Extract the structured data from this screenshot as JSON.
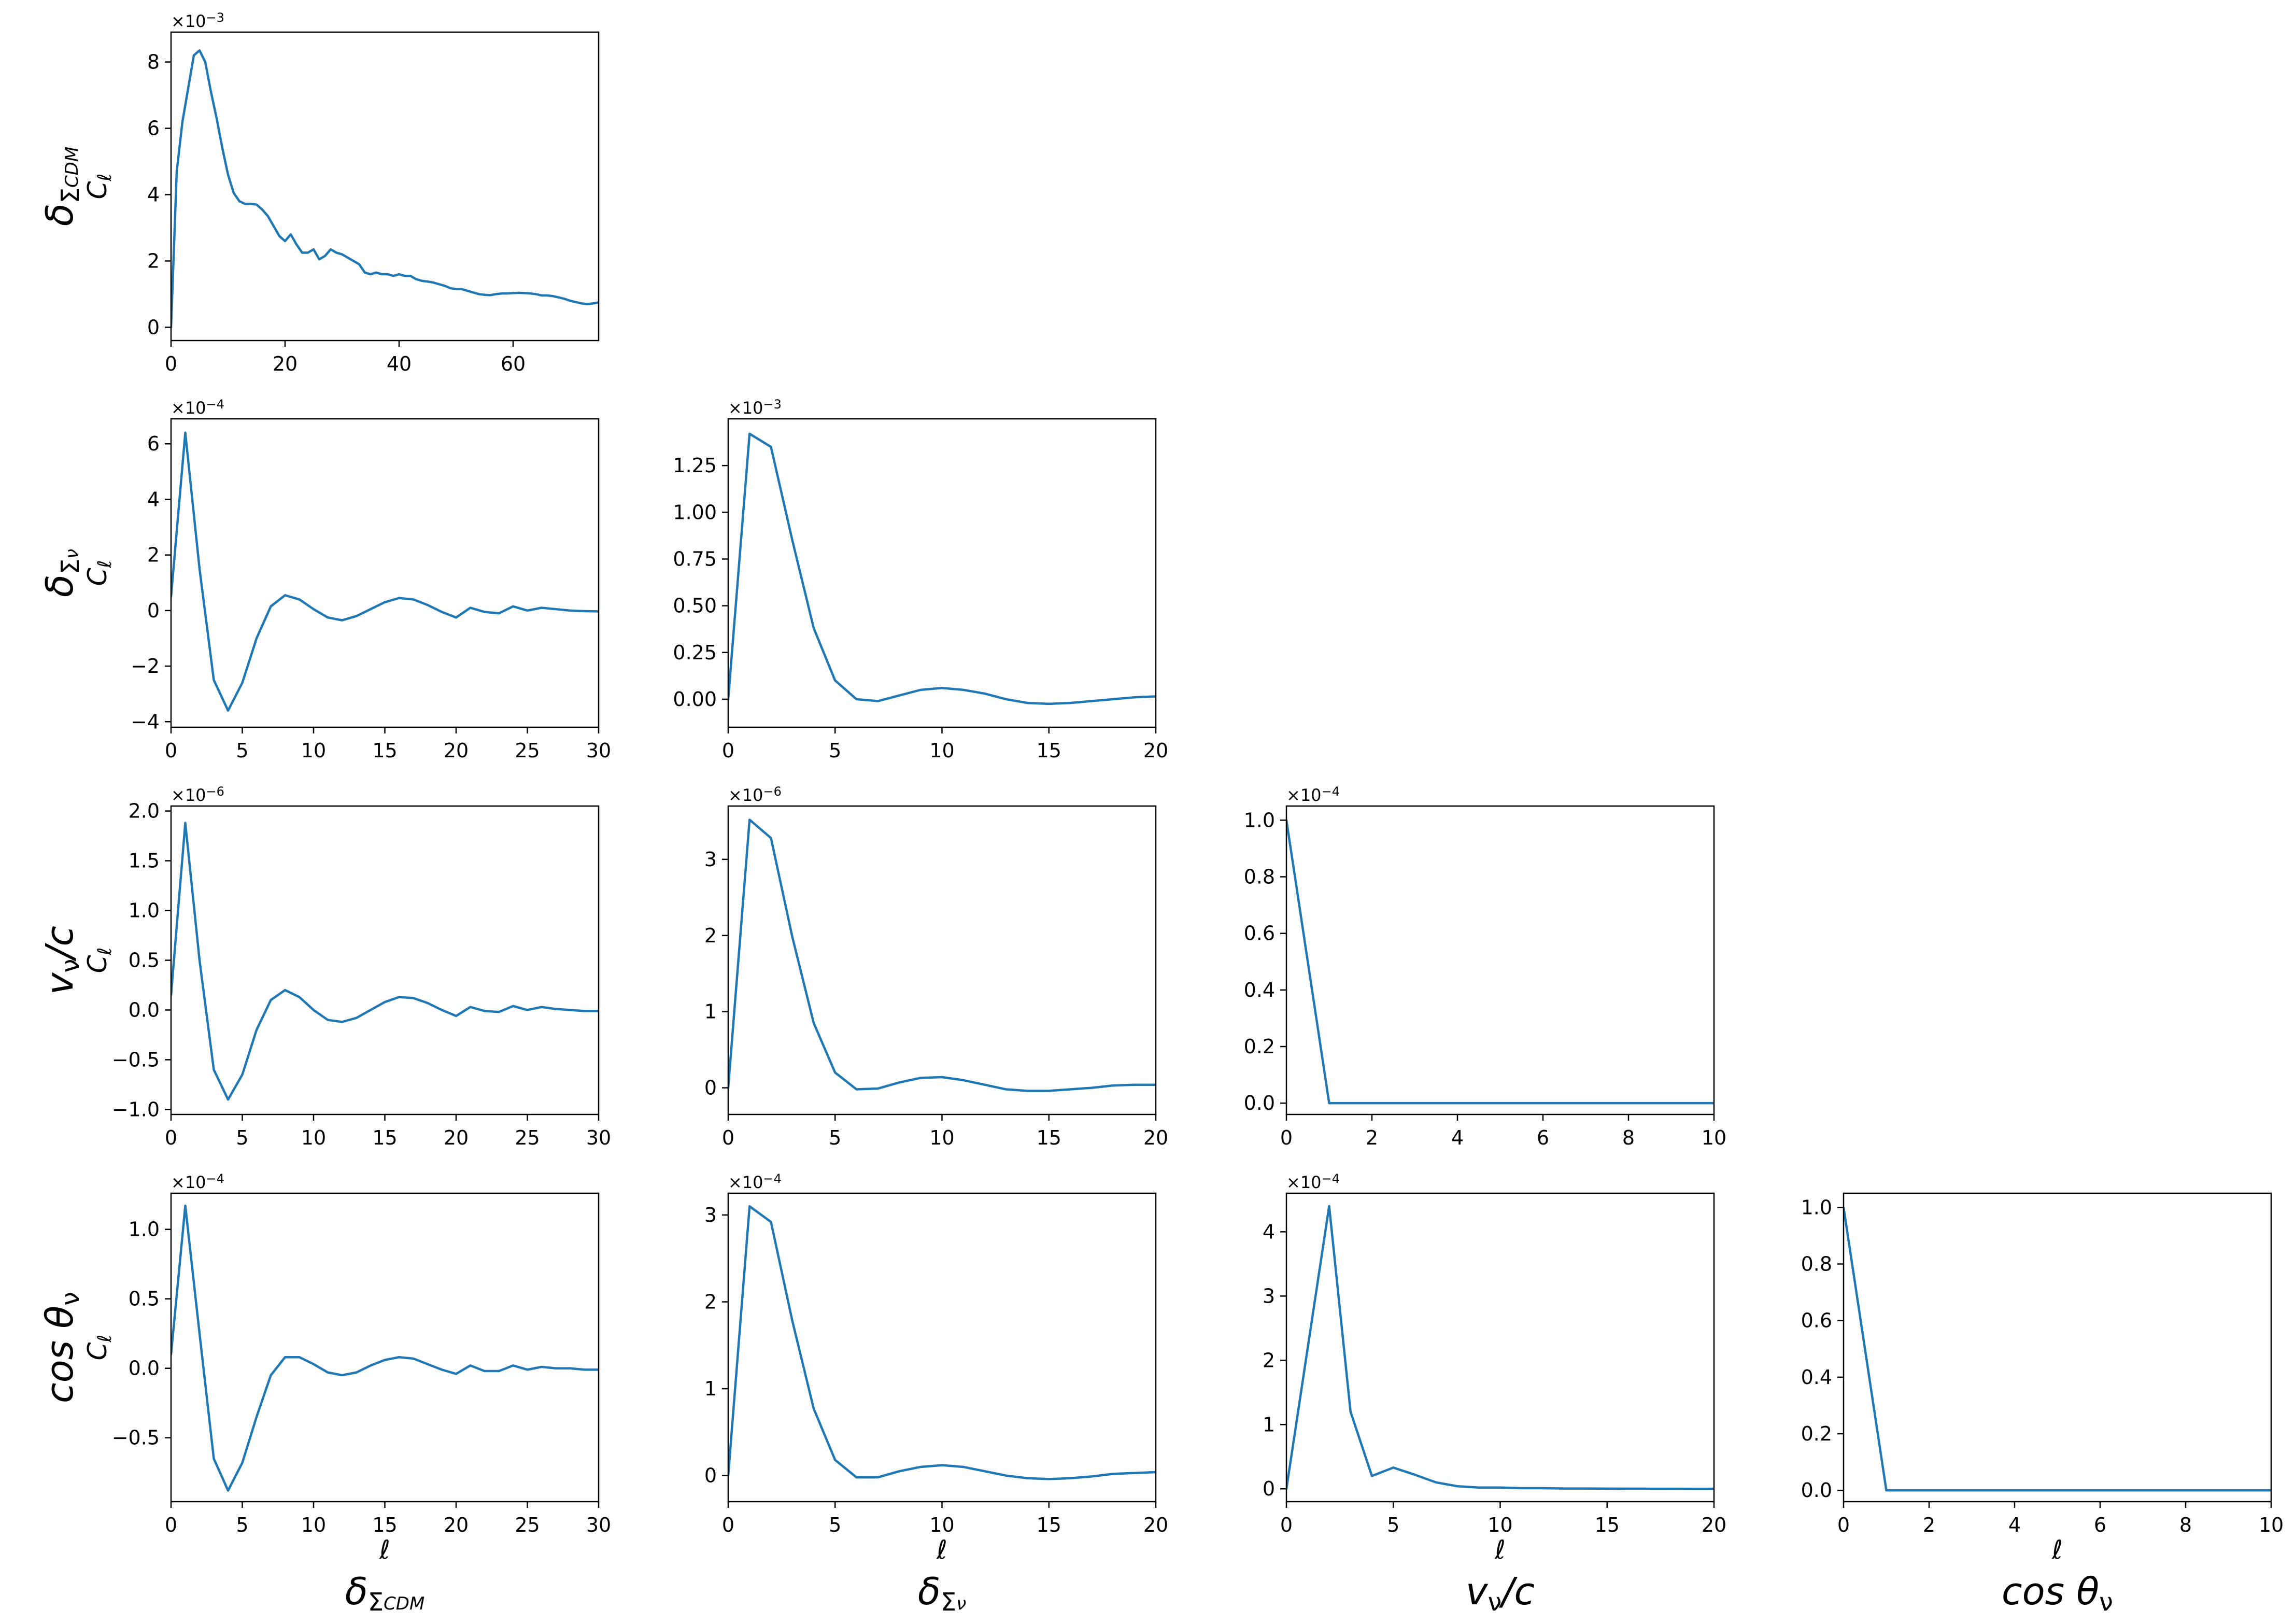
{
  "figure": {
    "row_labels": [
      {
        "base": "δ",
        "sub": "Σ",
        "subsub": "CDM"
      },
      {
        "base": "δ",
        "sub": "Σ",
        "subsub": "ν"
      },
      {
        "base": "v",
        "sub": "ν",
        "tail": "/c"
      },
      {
        "base": "cos θ",
        "sub": "ν"
      }
    ],
    "col_labels": [
      {
        "base": "δ",
        "sub": "Σ",
        "subsub": "CDM"
      },
      {
        "base": "δ",
        "sub": "Σ",
        "subsub": "ν"
      },
      {
        "base": "v",
        "sub": "ν",
        "tail": "/c"
      },
      {
        "base": "cos θ",
        "sub": "ν"
      }
    ],
    "ylabel": "C",
    "ylabel_sub": "ℓ",
    "xlabel": "ℓ",
    "line_color": "#1f77b4"
  },
  "chart_data": [
    {
      "type": "line",
      "row": 0,
      "col": 0,
      "multiplier": "-3",
      "xlim": [
        0,
        75
      ],
      "ylim": [
        -0.4,
        8.9
      ],
      "xticks": [
        0,
        20,
        40,
        60
      ],
      "yticks": [
        0,
        2,
        4,
        6,
        8
      ],
      "x": [
        0,
        1,
        2,
        3,
        4,
        5,
        6,
        7,
        8,
        9,
        10,
        11,
        12,
        13,
        14,
        15,
        16,
        17,
        18,
        19,
        20,
        21,
        22,
        23,
        24,
        25,
        26,
        27,
        28,
        29,
        30,
        31,
        32,
        33,
        34,
        35,
        36,
        37,
        38,
        39,
        40,
        41,
        42,
        43,
        44,
        45,
        46,
        47,
        48,
        49,
        50,
        51,
        52,
        53,
        54,
        55,
        56,
        57,
        58,
        59,
        60,
        61,
        62,
        63,
        64,
        65,
        66,
        67,
        68,
        69,
        70,
        71,
        72,
        73,
        74,
        75
      ],
      "y": [
        0,
        4.7,
        6.2,
        7.2,
        8.2,
        8.35,
        8.0,
        7.1,
        6.3,
        5.4,
        4.6,
        4.05,
        3.8,
        3.72,
        3.72,
        3.7,
        3.55,
        3.35,
        3.05,
        2.75,
        2.6,
        2.8,
        2.5,
        2.25,
        2.25,
        2.35,
        2.05,
        2.15,
        2.35,
        2.25,
        2.2,
        2.1,
        2.0,
        1.9,
        1.65,
        1.6,
        1.65,
        1.6,
        1.6,
        1.55,
        1.6,
        1.55,
        1.55,
        1.45,
        1.4,
        1.38,
        1.35,
        1.3,
        1.25,
        1.18,
        1.15,
        1.15,
        1.1,
        1.05,
        1.0,
        0.98,
        0.97,
        1.0,
        1.02,
        1.02,
        1.03,
        1.04,
        1.03,
        1.02,
        1.0,
        0.96,
        0.96,
        0.94,
        0.9,
        0.86,
        0.8,
        0.76,
        0.72,
        0.7,
        0.72,
        0.75
      ]
    },
    {
      "type": "line",
      "row": 1,
      "col": 0,
      "multiplier": "-4",
      "xlim": [
        0,
        30
      ],
      "ylim": [
        -4.2,
        6.9
      ],
      "xticks": [
        0,
        5,
        10,
        15,
        20,
        25,
        30
      ],
      "yticks": [
        -4,
        -2,
        0,
        2,
        4,
        6
      ],
      "x": [
        0,
        1,
        2,
        3,
        4,
        5,
        6,
        7,
        8,
        9,
        10,
        11,
        12,
        13,
        14,
        15,
        16,
        17,
        18,
        19,
        20,
        21,
        22,
        23,
        24,
        25,
        26,
        27,
        28,
        29,
        30
      ],
      "y": [
        0.5,
        6.4,
        1.5,
        -2.5,
        -3.6,
        -2.6,
        -1.0,
        0.15,
        0.55,
        0.4,
        0.05,
        -0.25,
        -0.35,
        -0.2,
        0.05,
        0.3,
        0.45,
        0.4,
        0.2,
        -0.05,
        -0.25,
        0.1,
        -0.05,
        -0.1,
        0.15,
        0.0,
        0.1,
        0.05,
        0.0,
        -0.02,
        -0.03
      ]
    },
    {
      "type": "line",
      "row": 1,
      "col": 1,
      "multiplier": "-3",
      "xlim": [
        0,
        20
      ],
      "ylim": [
        -0.15,
        1.5
      ],
      "xticks": [
        0,
        5,
        10,
        15,
        20
      ],
      "yticks": [
        0.0,
        0.25,
        0.5,
        0.75,
        1.0,
        1.25
      ],
      "x": [
        0,
        1,
        2,
        3,
        4,
        5,
        6,
        7,
        8,
        9,
        10,
        11,
        12,
        13,
        14,
        15,
        16,
        17,
        18,
        19,
        20
      ],
      "y": [
        0.0,
        1.42,
        1.35,
        0.85,
        0.38,
        0.1,
        0.0,
        -0.01,
        0.02,
        0.05,
        0.06,
        0.05,
        0.03,
        0.0,
        -0.02,
        -0.025,
        -0.02,
        -0.01,
        0.0,
        0.01,
        0.015
      ]
    },
    {
      "type": "line",
      "row": 2,
      "col": 0,
      "multiplier": "-6",
      "xlim": [
        0,
        30
      ],
      "ylim": [
        -1.05,
        2.05
      ],
      "xticks": [
        0,
        5,
        10,
        15,
        20,
        25,
        30
      ],
      "yticks": [
        -1.0,
        -0.5,
        0.0,
        0.5,
        1.0,
        1.5,
        2.0
      ],
      "x": [
        0,
        1,
        2,
        3,
        4,
        5,
        6,
        7,
        8,
        9,
        10,
        11,
        12,
        13,
        14,
        15,
        16,
        17,
        18,
        19,
        20,
        21,
        22,
        23,
        24,
        25,
        26,
        27,
        28,
        29,
        30
      ],
      "y": [
        0.15,
        1.88,
        0.5,
        -0.6,
        -0.9,
        -0.65,
        -0.2,
        0.1,
        0.2,
        0.13,
        0.0,
        -0.1,
        -0.12,
        -0.08,
        0.0,
        0.08,
        0.13,
        0.12,
        0.07,
        0.0,
        -0.06,
        0.03,
        -0.01,
        -0.02,
        0.04,
        0.0,
        0.03,
        0.01,
        0.0,
        -0.01,
        -0.01
      ]
    },
    {
      "type": "line",
      "row": 2,
      "col": 1,
      "multiplier": "-6",
      "xlim": [
        0,
        20
      ],
      "ylim": [
        -0.35,
        3.7
      ],
      "xticks": [
        0,
        5,
        10,
        15,
        20
      ],
      "yticks": [
        0,
        1,
        2,
        3
      ],
      "x": [
        0,
        1,
        2,
        3,
        4,
        5,
        6,
        7,
        8,
        9,
        10,
        11,
        12,
        13,
        14,
        15,
        16,
        17,
        18,
        19,
        20
      ],
      "y": [
        0.0,
        3.52,
        3.28,
        1.98,
        0.85,
        0.2,
        -0.02,
        -0.01,
        0.07,
        0.13,
        0.14,
        0.1,
        0.04,
        -0.02,
        -0.04,
        -0.04,
        -0.02,
        0.0,
        0.03,
        0.04,
        0.04
      ]
    },
    {
      "type": "line",
      "row": 2,
      "col": 2,
      "multiplier": "-4",
      "xlim": [
        0,
        10
      ],
      "ylim": [
        -0.04,
        1.05
      ],
      "xticks": [
        0,
        2,
        4,
        6,
        8,
        10
      ],
      "yticks": [
        0.0,
        0.2,
        0.4,
        0.6,
        0.8,
        1.0
      ],
      "x": [
        0,
        1,
        2,
        3,
        4,
        5,
        6,
        7,
        8,
        9,
        10
      ],
      "y": [
        1.0,
        0.0,
        0.0,
        0.0,
        0.0,
        0.0,
        0.0,
        0.0,
        0.0,
        0.0,
        0.0
      ]
    },
    {
      "type": "line",
      "row": 3,
      "col": 0,
      "multiplier": "-4",
      "xlim": [
        0,
        30
      ],
      "ylim": [
        -0.96,
        1.26
      ],
      "xticks": [
        0,
        5,
        10,
        15,
        20,
        25,
        30
      ],
      "yticks": [
        -0.5,
        0.0,
        0.5,
        1.0
      ],
      "x": [
        0,
        1,
        2,
        3,
        4,
        5,
        6,
        7,
        8,
        9,
        10,
        11,
        12,
        13,
        14,
        15,
        16,
        17,
        18,
        19,
        20,
        21,
        22,
        23,
        24,
        25,
        26,
        27,
        28,
        29,
        30
      ],
      "y": [
        0.1,
        1.17,
        0.25,
        -0.65,
        -0.88,
        -0.68,
        -0.35,
        -0.05,
        0.08,
        0.08,
        0.03,
        -0.03,
        -0.05,
        -0.03,
        0.02,
        0.06,
        0.08,
        0.07,
        0.03,
        -0.01,
        -0.04,
        0.02,
        -0.02,
        -0.02,
        0.02,
        -0.01,
        0.01,
        0.0,
        0.0,
        -0.01,
        -0.01
      ]
    },
    {
      "type": "line",
      "row": 3,
      "col": 1,
      "multiplier": "-4",
      "xlim": [
        0,
        20
      ],
      "ylim": [
        -0.3,
        3.25
      ],
      "xticks": [
        0,
        5,
        10,
        15,
        20
      ],
      "yticks": [
        0,
        1,
        2,
        3
      ],
      "x": [
        0,
        1,
        2,
        3,
        4,
        5,
        6,
        7,
        8,
        9,
        10,
        11,
        12,
        13,
        14,
        15,
        16,
        17,
        18,
        19,
        20
      ],
      "y": [
        0.0,
        3.1,
        2.92,
        1.78,
        0.77,
        0.18,
        -0.02,
        -0.02,
        0.05,
        0.1,
        0.12,
        0.1,
        0.05,
        0.0,
        -0.03,
        -0.04,
        -0.03,
        -0.01,
        0.02,
        0.03,
        0.04
      ]
    },
    {
      "type": "line",
      "row": 3,
      "col": 2,
      "multiplier": "-4",
      "xlim": [
        0,
        20
      ],
      "ylim": [
        -0.2,
        4.6
      ],
      "xticks": [
        0,
        5,
        10,
        15,
        20
      ],
      "yticks": [
        0,
        1,
        2,
        3,
        4
      ],
      "x": [
        0,
        1,
        2,
        3,
        4,
        5,
        6,
        7,
        8,
        9,
        10,
        11,
        12,
        13,
        14,
        15,
        16,
        17,
        18,
        19,
        20
      ],
      "y": [
        0.0,
        2.2,
        4.4,
        1.2,
        0.2,
        0.33,
        0.22,
        0.1,
        0.04,
        0.02,
        0.02,
        0.01,
        0.01,
        0.005,
        0.005,
        0.003,
        0.002,
        0.001,
        0.001,
        0.0,
        0.0
      ]
    },
    {
      "type": "line",
      "row": 3,
      "col": 3,
      "multiplier": "",
      "xlim": [
        0,
        10
      ],
      "ylim": [
        -0.04,
        1.05
      ],
      "xticks": [
        0,
        2,
        4,
        6,
        8,
        10
      ],
      "yticks": [
        0.0,
        0.2,
        0.4,
        0.6,
        0.8,
        1.0
      ],
      "x": [
        0,
        1,
        2,
        3,
        4,
        5,
        6,
        7,
        8,
        9,
        10
      ],
      "y": [
        1.0,
        0.0,
        0.0,
        0.0,
        0.0,
        0.0,
        0.0,
        0.0,
        0.0,
        0.0,
        0.0
      ]
    }
  ]
}
